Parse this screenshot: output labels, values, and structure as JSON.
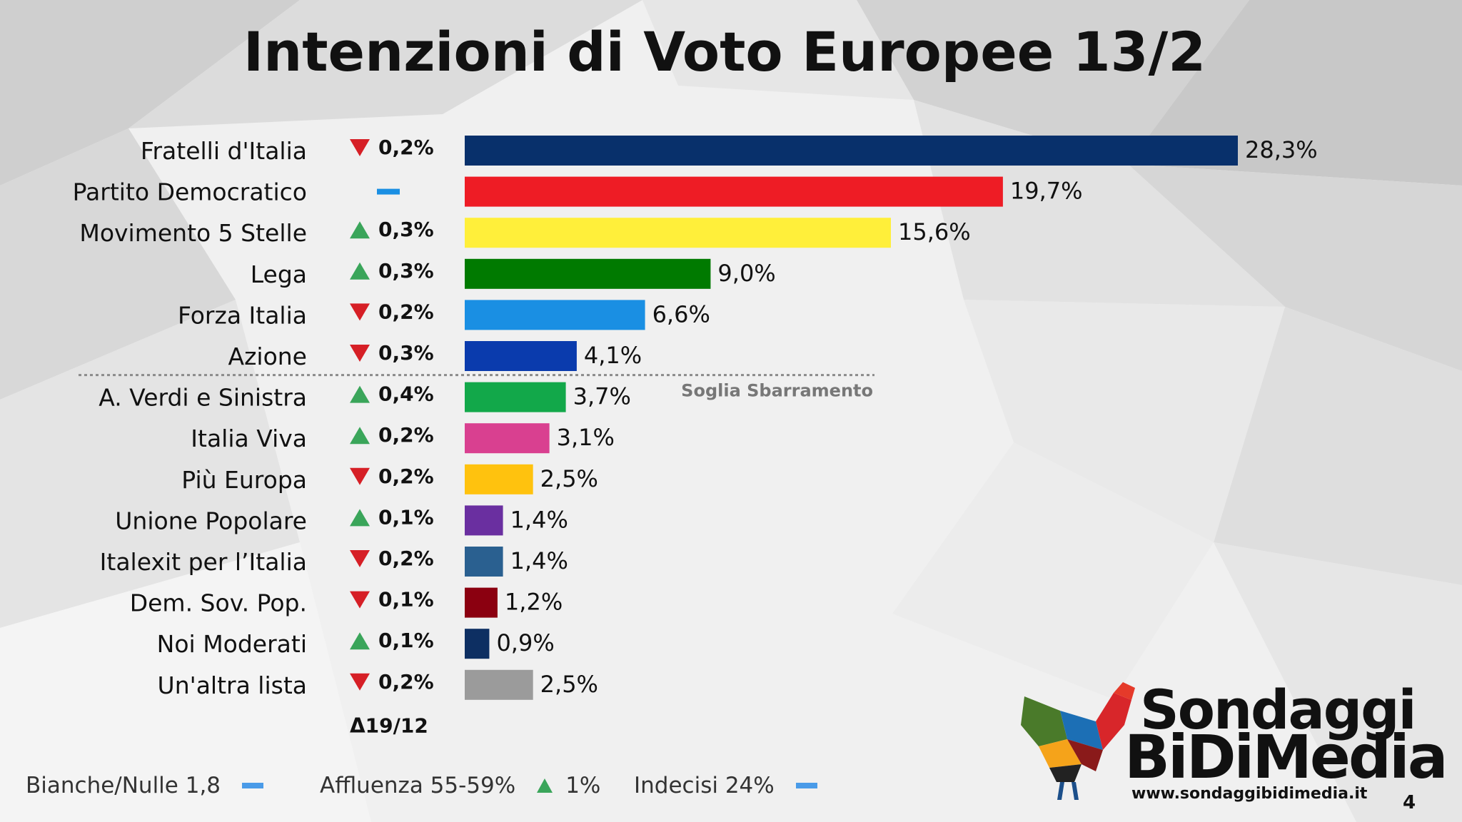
{
  "chart_data": {
    "type": "bar",
    "orientation": "horizontal",
    "title": "Intenzioni di Voto Europee 13/2",
    "categories": [
      "Fratelli d'Italia",
      "Partito Democratico",
      "Movimento 5 Stelle",
      "Lega",
      "Forza Italia",
      "Azione",
      "A. Verdi e Sinistra",
      "Italia Viva",
      "Più Europa",
      "Unione Popolare",
      "Italexit per l’Italia",
      "Dem. Sov. Pop.",
      "Noi Moderati",
      "Un'altra lista"
    ],
    "values": [
      28.3,
      19.7,
      15.6,
      9.0,
      6.6,
      4.1,
      3.7,
      3.1,
      2.5,
      1.4,
      1.4,
      1.2,
      0.9,
      2.5
    ],
    "value_labels": [
      "28,3%",
      "19,7%",
      "15,6%",
      "9,0%",
      "6,6%",
      "4,1%",
      "3,7%",
      "3,1%",
      "2,5%",
      "1,4%",
      "1,4%",
      "1,2%",
      "0,9%",
      "2,5%"
    ],
    "colors": [
      "#08306b",
      "#ee1c25",
      "#ffef3a",
      "#007a00",
      "#1a8fe3",
      "#0a3bad",
      "#12a84a",
      "#d94090",
      "#ffc20e",
      "#6a2fa0",
      "#2a6090",
      "#8b0010",
      "#0d2f62",
      "#9b9b9b"
    ],
    "changes": [
      {
        "dir": "down",
        "text": "0,2%"
      },
      {
        "dir": "same",
        "text": ""
      },
      {
        "dir": "up",
        "text": "0,3%"
      },
      {
        "dir": "up",
        "text": "0,3%"
      },
      {
        "dir": "down",
        "text": "0,2%"
      },
      {
        "dir": "down",
        "text": "0,3%"
      },
      {
        "dir": "up",
        "text": "0,4%"
      },
      {
        "dir": "up",
        "text": "0,2%"
      },
      {
        "dir": "down",
        "text": "0,2%"
      },
      {
        "dir": "up",
        "text": "0,1%"
      },
      {
        "dir": "down",
        "text": "0,2%"
      },
      {
        "dir": "down",
        "text": "0,1%"
      },
      {
        "dir": "up",
        "text": "0,1%"
      },
      {
        "dir": "down",
        "text": "0,2%"
      }
    ],
    "change_label": "Δ19/12",
    "threshold_label": "Soglia Sbarramento",
    "threshold_after_index": 5,
    "xlim": [
      0,
      28.3
    ],
    "grid": false,
    "legend": "none"
  },
  "footer": {
    "blank_null": "Bianche/Nulle 1,8",
    "turnout": "Affluenza 55-59%",
    "turnout_change": "1%",
    "undecided": "Indecisi 24%"
  },
  "logo": {
    "line1": "Sondaggi",
    "line2": "BiDiMedia",
    "url": "www.sondaggibidimedia.it"
  },
  "page_number": "4"
}
